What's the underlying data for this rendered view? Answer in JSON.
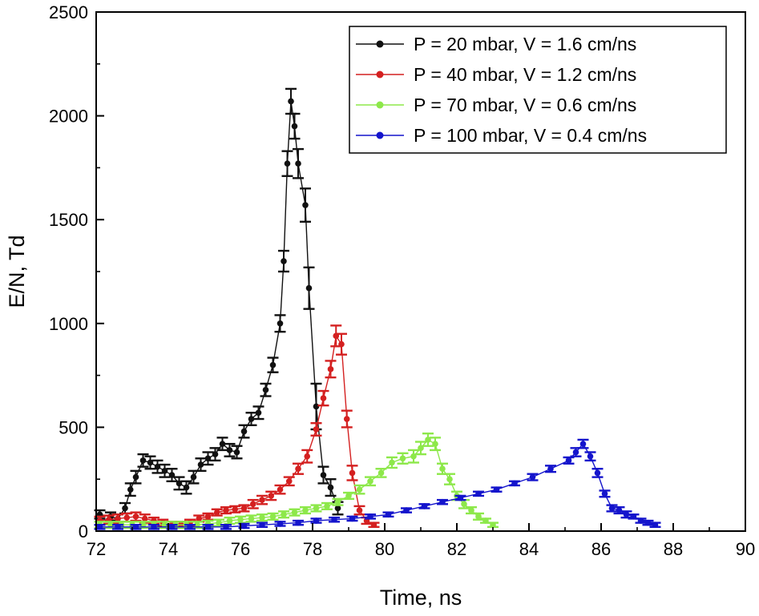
{
  "chart_data": {
    "type": "line",
    "title": "",
    "xlabel": "Time, ns",
    "ylabel": "E/N, Td",
    "xlim": [
      72,
      90
    ],
    "ylim": [
      0,
      2500
    ],
    "xticks": [
      72,
      74,
      76,
      78,
      80,
      82,
      84,
      86,
      88,
      90
    ],
    "yticks": [
      0,
      500,
      1000,
      1500,
      2000,
      2500
    ],
    "legend_position": "top-right",
    "grid": false,
    "series": [
      {
        "name": "P = 20 mbar, V = 1.6 cm/ns",
        "color": "#111111",
        "x": [
          72.1,
          72.4,
          72.6,
          72.8,
          72.95,
          73.1,
          73.3,
          73.5,
          73.7,
          73.9,
          74.1,
          74.3,
          74.5,
          74.7,
          74.9,
          75.1,
          75.3,
          75.5,
          75.7,
          75.9,
          76.1,
          76.3,
          76.5,
          76.7,
          76.9,
          77.1,
          77.2,
          77.3,
          77.4,
          77.5,
          77.6,
          77.8,
          77.9,
          78.1,
          78.3,
          78.5,
          78.7
        ],
        "y": [
          80,
          70,
          60,
          110,
          200,
          260,
          340,
          330,
          310,
          290,
          270,
          230,
          210,
          260,
          320,
          350,
          370,
          420,
          390,
          380,
          480,
          540,
          570,
          680,
          800,
          1000,
          1300,
          1770,
          2070,
          1950,
          1770,
          1570,
          1170,
          600,
          270,
          210,
          110
        ],
        "err": [
          20,
          20,
          20,
          25,
          30,
          30,
          30,
          30,
          30,
          30,
          30,
          30,
          30,
          30,
          30,
          30,
          30,
          30,
          30,
          30,
          30,
          30,
          30,
          30,
          35,
          40,
          50,
          60,
          60,
          60,
          70,
          80,
          100,
          110,
          40,
          40,
          30
        ]
      },
      {
        "name": "P = 40 mbar, V = 1.2 cm/ns",
        "color": "#d42020",
        "x": [
          72.1,
          72.35,
          72.6,
          72.85,
          73.1,
          73.35,
          73.6,
          73.85,
          74.1,
          74.35,
          74.6,
          74.85,
          75.1,
          75.35,
          75.6,
          75.85,
          76.1,
          76.35,
          76.6,
          76.85,
          77.1,
          77.35,
          77.6,
          77.85,
          78.1,
          78.3,
          78.5,
          78.65,
          78.8,
          78.95,
          79.1,
          79.3,
          79.5,
          79.7
        ],
        "y": [
          50,
          55,
          60,
          65,
          70,
          60,
          50,
          40,
          30,
          30,
          40,
          60,
          70,
          90,
          100,
          105,
          110,
          130,
          150,
          170,
          200,
          240,
          300,
          360,
          490,
          640,
          780,
          940,
          900,
          540,
          280,
          100,
          50,
          30
        ],
        "err": [
          20,
          20,
          20,
          20,
          20,
          20,
          15,
          15,
          15,
          15,
          15,
          15,
          15,
          15,
          15,
          15,
          15,
          20,
          20,
          20,
          20,
          20,
          25,
          30,
          30,
          35,
          40,
          50,
          50,
          40,
          35,
          20,
          15,
          10
        ]
      },
      {
        "name": "P = 70 mbar, V = 0.6 cm/ns",
        "color": "#8de84a",
        "x": [
          72.1,
          72.4,
          72.7,
          73.0,
          73.3,
          73.6,
          73.9,
          74.2,
          74.5,
          74.8,
          75.1,
          75.4,
          75.7,
          76.0,
          76.3,
          76.6,
          76.9,
          77.2,
          77.5,
          77.8,
          78.1,
          78.4,
          78.7,
          79.0,
          79.3,
          79.6,
          79.9,
          80.2,
          80.5,
          80.8,
          81.0,
          81.2,
          81.4,
          81.6,
          81.8,
          82.0,
          82.2,
          82.4,
          82.6,
          82.8,
          83.0
        ],
        "y": [
          30,
          30,
          30,
          30,
          30,
          30,
          30,
          30,
          30,
          30,
          35,
          40,
          50,
          55,
          60,
          65,
          70,
          80,
          90,
          100,
          110,
          120,
          140,
          170,
          200,
          240,
          280,
          330,
          350,
          360,
          400,
          440,
          420,
          300,
          250,
          170,
          130,
          100,
          70,
          50,
          30
        ],
        "err": [
          15,
          15,
          15,
          15,
          15,
          15,
          15,
          15,
          15,
          15,
          15,
          15,
          15,
          15,
          15,
          15,
          15,
          15,
          15,
          15,
          15,
          15,
          15,
          15,
          20,
          20,
          20,
          25,
          25,
          30,
          30,
          30,
          30,
          25,
          25,
          20,
          20,
          15,
          15,
          10,
          10
        ]
      },
      {
        "name": "P = 100 mbar, V = 0.4 cm/ns",
        "color": "#1414cc",
        "x": [
          72.1,
          72.6,
          73.1,
          73.6,
          74.1,
          74.6,
          75.1,
          75.6,
          76.1,
          76.6,
          77.1,
          77.6,
          78.1,
          78.6,
          79.1,
          79.6,
          80.1,
          80.6,
          81.1,
          81.6,
          82.1,
          82.6,
          83.1,
          83.6,
          84.1,
          84.6,
          85.1,
          85.3,
          85.5,
          85.7,
          85.9,
          86.1,
          86.3,
          86.5,
          86.7,
          86.9,
          87.1,
          87.3,
          87.5
        ],
        "y": [
          20,
          20,
          20,
          20,
          20,
          20,
          20,
          20,
          25,
          30,
          35,
          40,
          50,
          55,
          60,
          70,
          80,
          100,
          120,
          140,
          160,
          180,
          200,
          230,
          260,
          300,
          340,
          380,
          420,
          360,
          280,
          180,
          110,
          100,
          80,
          70,
          50,
          40,
          30
        ],
        "err": [
          10,
          10,
          10,
          10,
          10,
          10,
          10,
          10,
          10,
          10,
          10,
          10,
          10,
          10,
          10,
          10,
          10,
          10,
          10,
          10,
          10,
          10,
          10,
          10,
          15,
          15,
          15,
          20,
          20,
          20,
          20,
          15,
          15,
          15,
          15,
          10,
          10,
          10,
          10
        ]
      }
    ]
  }
}
